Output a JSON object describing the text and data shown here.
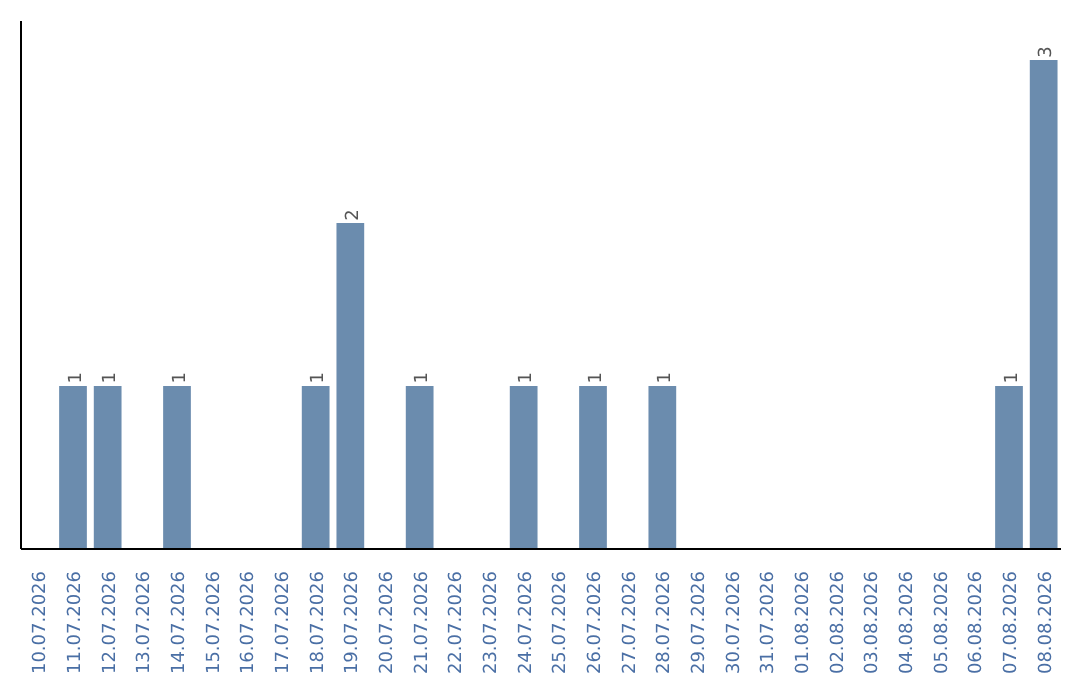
{
  "chart_data": {
    "type": "bar",
    "categories": [
      "10.07.2026",
      "11.07.2026",
      "12.07.2026",
      "13.07.2026",
      "14.07.2026",
      "15.07.2026",
      "16.07.2026",
      "17.07.2026",
      "18.07.2026",
      "19.07.2026",
      "20.07.2026",
      "21.07.2026",
      "22.07.2026",
      "23.07.2026",
      "24.07.2026",
      "25.07.2026",
      "26.07.2026",
      "27.07.2026",
      "28.07.2026",
      "29.07.2026",
      "30.07.2026",
      "31.07.2026",
      "01.08.2026",
      "02.08.2026",
      "03.08.2026",
      "04.08.2026",
      "05.08.2026",
      "06.08.2026",
      "07.08.2026",
      "08.08.2026"
    ],
    "values": [
      0,
      1,
      1,
      0,
      1,
      0,
      0,
      0,
      1,
      2,
      0,
      1,
      0,
      0,
      1,
      0,
      1,
      0,
      1,
      0,
      0,
      0,
      0,
      0,
      0,
      0,
      0,
      0,
      1,
      3
    ],
    "value_labels": [
      null,
      "1",
      "1",
      null,
      "1",
      null,
      null,
      null,
      "1",
      "2",
      null,
      "1",
      null,
      null,
      "1",
      null,
      "1",
      null,
      "1",
      null,
      null,
      null,
      null,
      null,
      null,
      null,
      null,
      null,
      "1",
      "3"
    ],
    "color": "#6b8cae",
    "tick_labels": "x"
  }
}
